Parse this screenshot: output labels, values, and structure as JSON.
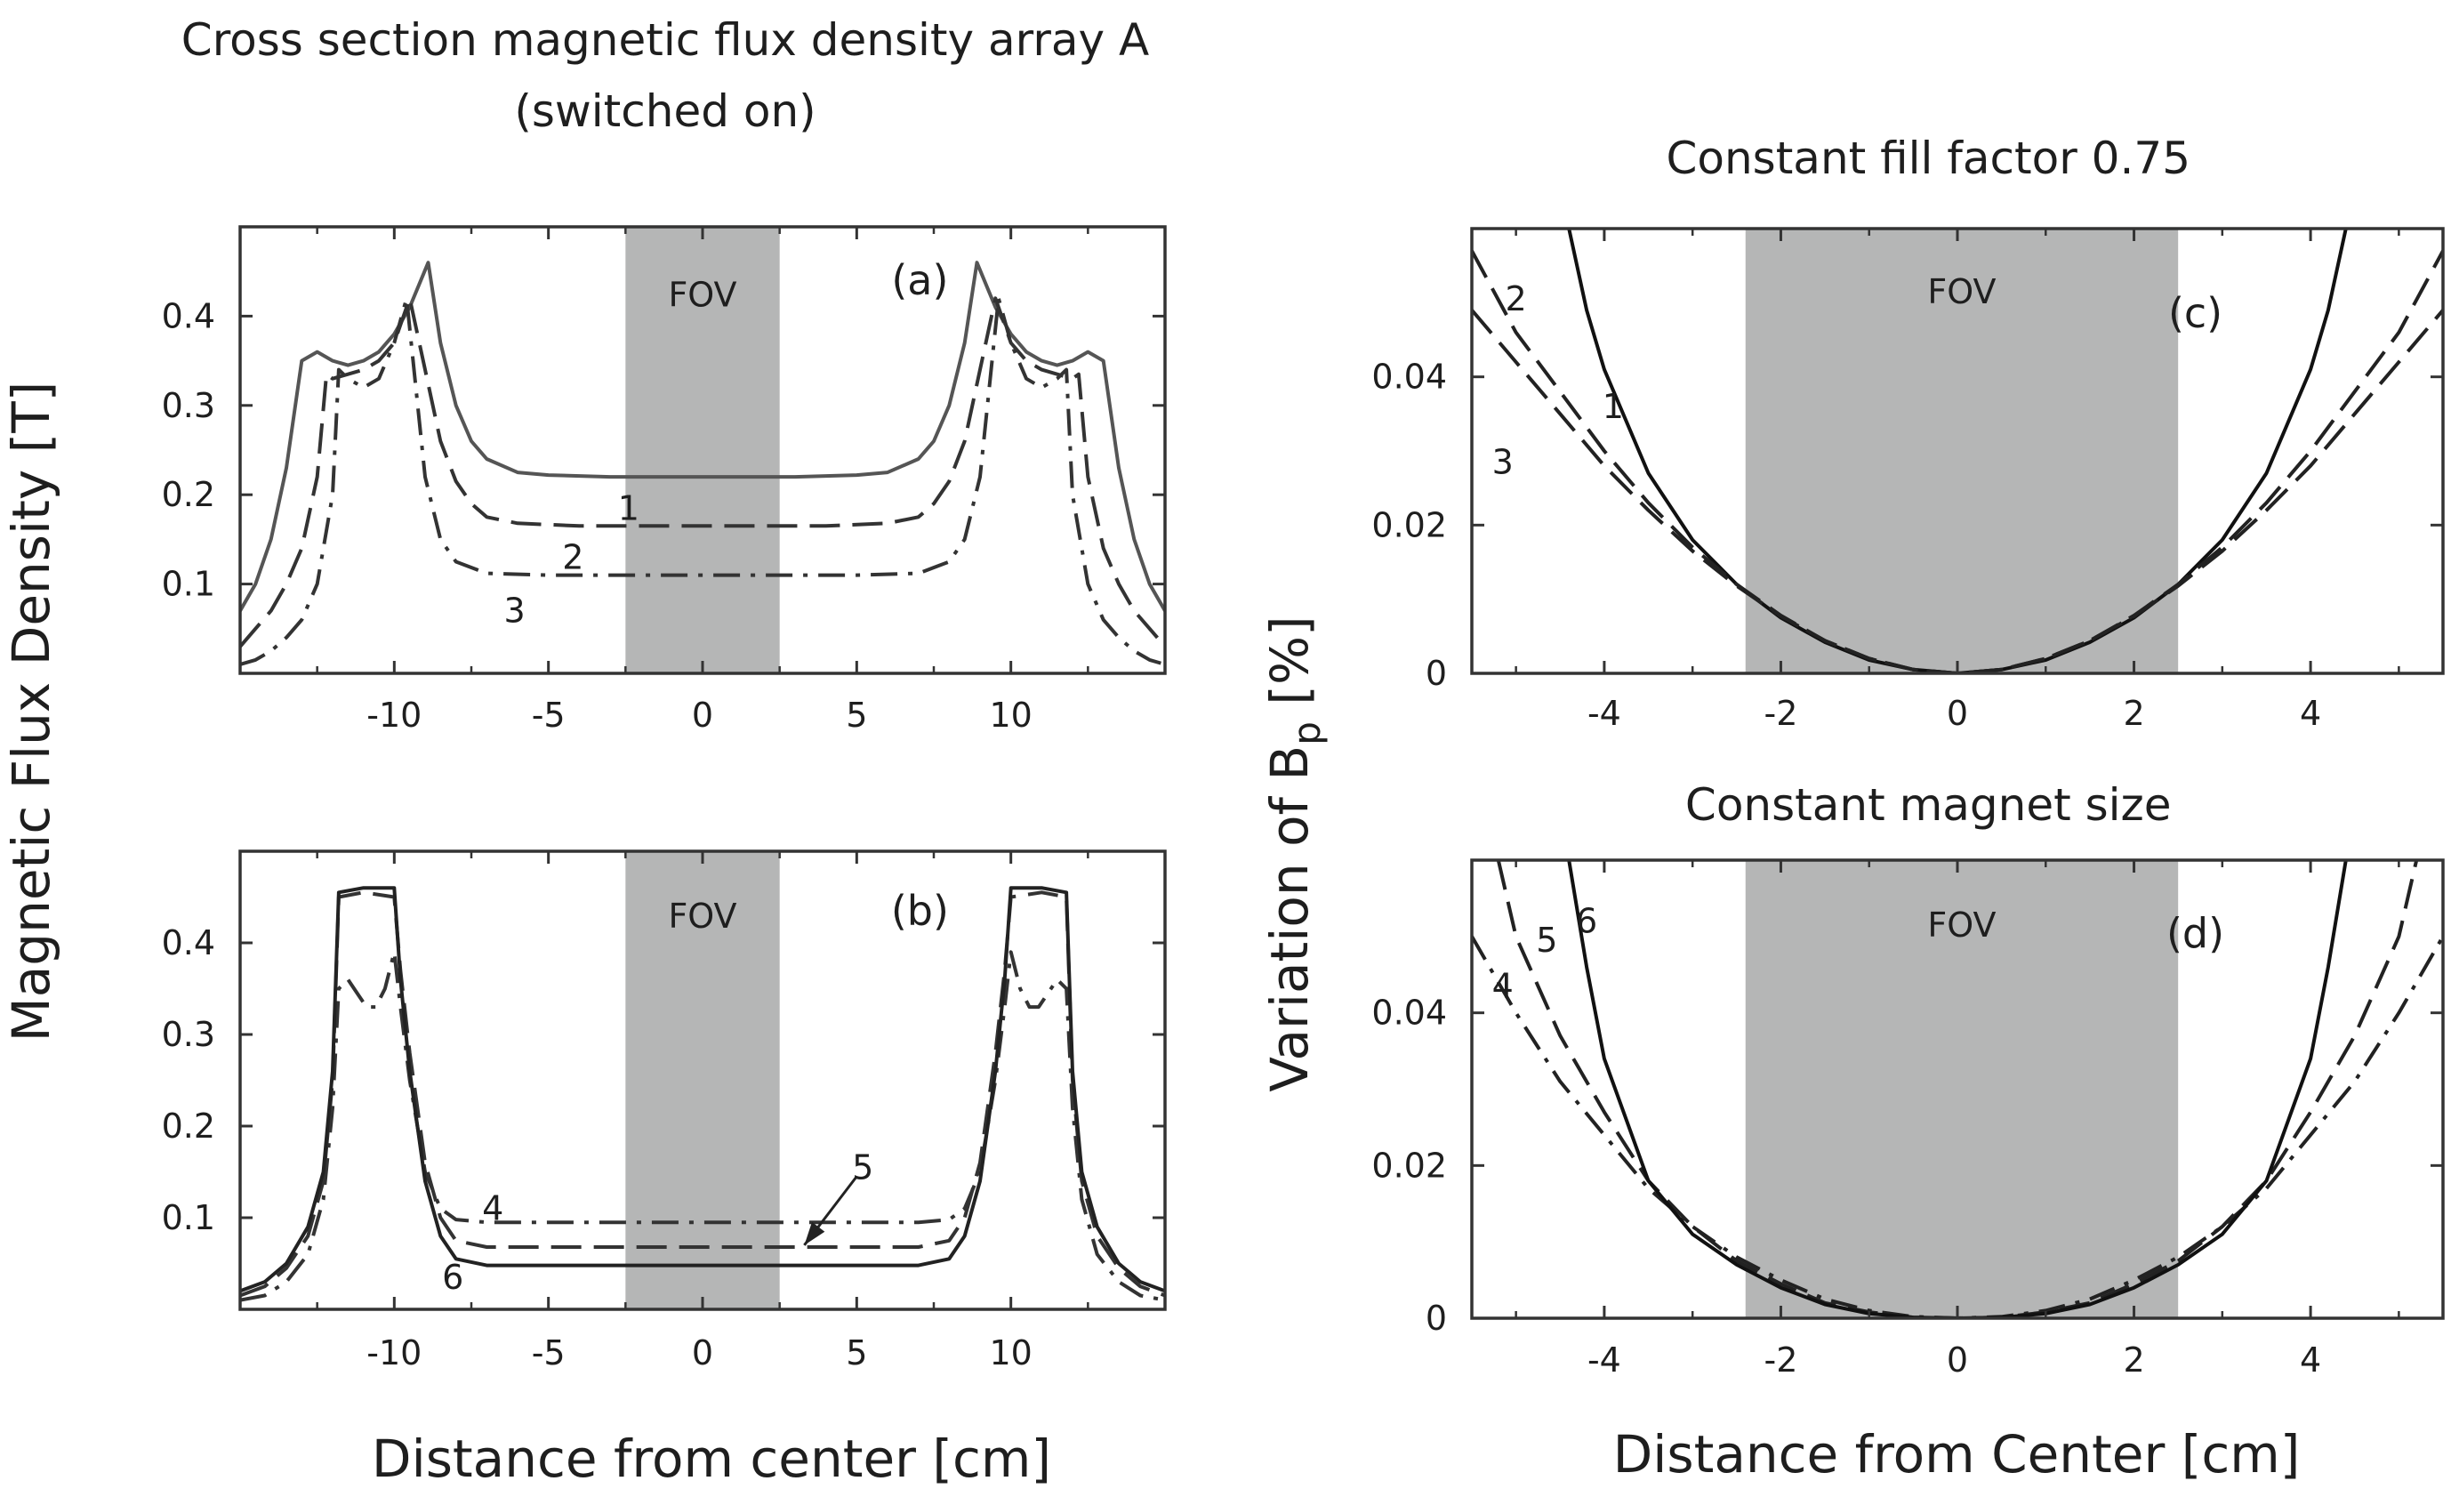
{
  "figure": {
    "left_title_line1": "Cross section magnetic flux density array A",
    "left_title_line2": "(switched on)",
    "left_ylabel": "Magnetic Flux Density [T]",
    "left_xlabel": "Distance from center [cm]",
    "right_ylabel_main": "Variation of B",
    "right_ylabel_sub": "p",
    "right_ylabel_unit": " [%]",
    "right_xlabel": "Distance from Center [cm]"
  },
  "chart_data": [
    {
      "id": "a",
      "type": "line",
      "title": "",
      "panel_label": "(a)",
      "band_label": "FOV",
      "fov": [
        -2.5,
        2.5
      ],
      "xlim": [
        -15,
        15
      ],
      "ylim": [
        0,
        0.5
      ],
      "xticks": [
        -10,
        -5,
        0,
        5,
        10
      ],
      "yticks": [
        0.1,
        0.2,
        0.3,
        0.4
      ],
      "xticklabels": [
        "-10",
        "-5",
        "0",
        "5",
        "10"
      ],
      "yticklabels": [
        "0.1",
        "0.2",
        "0.3",
        "0.4"
      ],
      "grid": false,
      "series": [
        {
          "name": "1",
          "style": "solid",
          "color": "#555555",
          "x": [
            0,
            3,
            5,
            6,
            7,
            7.5,
            8,
            8.5,
            8.9,
            9.5,
            10,
            10.5,
            11,
            11.5,
            12,
            12.5,
            13,
            13.5,
            14,
            14.5,
            15
          ],
          "y": [
            0.22,
            0.22,
            0.222,
            0.225,
            0.24,
            0.26,
            0.3,
            0.37,
            0.46,
            0.41,
            0.38,
            0.36,
            0.35,
            0.345,
            0.35,
            0.36,
            0.35,
            0.23,
            0.15,
            0.1,
            0.07
          ]
        },
        {
          "name": "2",
          "style": "dash",
          "color": "#333333",
          "x": [
            0,
            4,
            6,
            7,
            7.5,
            8,
            8.5,
            9,
            9.5,
            10,
            10.5,
            11,
            11.5,
            12,
            12.2,
            12.5,
            13,
            13.5,
            14,
            14.5,
            15
          ],
          "y": [
            0.165,
            0.165,
            0.168,
            0.175,
            0.19,
            0.215,
            0.26,
            0.34,
            0.42,
            0.37,
            0.35,
            0.34,
            0.335,
            0.33,
            0.335,
            0.22,
            0.14,
            0.1,
            0.07,
            0.05,
            0.03
          ]
        },
        {
          "name": "3",
          "style": "dashdot",
          "color": "#333333",
          "x": [
            0,
            5,
            7,
            8,
            8.5,
            9,
            9.3,
            9.6,
            10,
            10.5,
            11,
            11.5,
            11.8,
            12,
            12.5,
            13,
            13.5,
            14,
            14.5,
            15
          ],
          "y": [
            0.11,
            0.11,
            0.112,
            0.125,
            0.15,
            0.22,
            0.32,
            0.42,
            0.37,
            0.33,
            0.32,
            0.33,
            0.34,
            0.2,
            0.1,
            0.06,
            0.04,
            0.025,
            0.015,
            0.01
          ]
        }
      ],
      "curve_labels": [
        {
          "text": "1",
          "x": -2.4,
          "y": 0.185
        },
        {
          "text": "2",
          "x": -4.2,
          "y": 0.13
        },
        {
          "text": "3",
          "x": -6.1,
          "y": 0.07
        }
      ]
    },
    {
      "id": "b",
      "type": "line",
      "title": "",
      "panel_label": "(b)",
      "band_label": "FOV",
      "fov": [
        -2.5,
        2.5
      ],
      "xlim": [
        -15,
        15
      ],
      "ylim": [
        0,
        0.5
      ],
      "xticks": [
        -10,
        -5,
        0,
        5,
        10
      ],
      "yticks": [
        0.1,
        0.2,
        0.3,
        0.4
      ],
      "xticklabels": [
        "-10",
        "-5",
        "0",
        "5",
        "10"
      ],
      "yticklabels": [
        "0.1",
        "0.2",
        "0.3",
        "0.4"
      ],
      "grid": false,
      "series": [
        {
          "name": "4",
          "style": "dashdot",
          "color": "#333333",
          "x": [
            0,
            7,
            8,
            8.5,
            9,
            9.5,
            9.8,
            10,
            10.3,
            10.6,
            10.9,
            11.2,
            11.5,
            11.8,
            12,
            12.3,
            12.8,
            13.5,
            14.2,
            15
          ],
          "y": [
            0.095,
            0.095,
            0.098,
            0.11,
            0.15,
            0.25,
            0.33,
            0.39,
            0.35,
            0.33,
            0.33,
            0.345,
            0.36,
            0.35,
            0.22,
            0.12,
            0.06,
            0.03,
            0.015,
            0.01
          ]
        },
        {
          "name": "5",
          "style": "dash",
          "color": "#333333",
          "x": [
            0,
            7,
            8,
            8.5,
            9,
            9.5,
            9.8,
            10,
            11,
            11.8,
            12,
            12.3,
            12.8,
            13.5,
            14.2,
            15
          ],
          "y": [
            0.068,
            0.068,
            0.075,
            0.1,
            0.16,
            0.28,
            0.37,
            0.45,
            0.455,
            0.45,
            0.25,
            0.14,
            0.08,
            0.045,
            0.025,
            0.015
          ]
        },
        {
          "name": "6",
          "style": "solid",
          "color": "#222222",
          "x": [
            0,
            7,
            8,
            8.5,
            9,
            9.5,
            9.8,
            10,
            11,
            11.8,
            12,
            12.3,
            12.8,
            13.5,
            14.2,
            15
          ],
          "y": [
            0.048,
            0.048,
            0.055,
            0.08,
            0.14,
            0.26,
            0.36,
            0.46,
            0.46,
            0.455,
            0.26,
            0.15,
            0.09,
            0.05,
            0.03,
            0.02
          ]
        }
      ],
      "curve_labels": [
        {
          "text": "4",
          "x": -6.8,
          "y": 0.11
        },
        {
          "text": "5",
          "x": 5.2,
          "y": 0.155
        },
        {
          "text": "6",
          "x": -8.1,
          "y": 0.035
        }
      ],
      "arrow": {
        "from": [
          5.0,
          0.145
        ],
        "to": [
          3.3,
          0.07
        ]
      }
    },
    {
      "id": "c",
      "type": "line",
      "title": "Constant fill factor 0.75",
      "panel_label": "(c)",
      "band_label": "FOV",
      "fov": [
        -2.4,
        2.5
      ],
      "xlim": [
        -5.5,
        5.5
      ],
      "ylim": [
        0,
        0.06
      ],
      "xticks": [
        -4,
        -2,
        0,
        2,
        4
      ],
      "yticks": [
        0,
        0.02,
        0.04
      ],
      "xticklabels": [
        "-4",
        "-2",
        "0",
        "2",
        "4"
      ],
      "yticklabels": [
        "0",
        "0.02",
        "0.04"
      ],
      "grid": false,
      "series": [
        {
          "name": "1",
          "style": "solid",
          "color": "#111111",
          "x": [
            -4.4,
            -4.2,
            -4,
            -3.5,
            -3,
            -2.5,
            -2,
            -1.5,
            -1,
            -0.5,
            0,
            0.5,
            1,
            1.5,
            2,
            2.5,
            3,
            3.5,
            4,
            4.2,
            4.4
          ],
          "y": [
            0.06,
            0.049,
            0.041,
            0.027,
            0.018,
            0.012,
            0.0075,
            0.0042,
            0.0018,
            0.0005,
            0,
            0.0005,
            0.0018,
            0.0042,
            0.0075,
            0.012,
            0.018,
            0.027,
            0.041,
            0.049,
            0.06
          ]
        },
        {
          "name": "2",
          "style": "dash",
          "color": "#222222",
          "x": [
            -5.5,
            -5,
            -4.5,
            -4,
            -3.5,
            -3,
            -2.5,
            -2,
            -1.5,
            -1,
            -0.5,
            0,
            0.5,
            1,
            1.5,
            2,
            2.5,
            3,
            3.5,
            4,
            4.5,
            5,
            5.5
          ],
          "y": [
            0.057,
            0.046,
            0.038,
            0.03,
            0.023,
            0.017,
            0.012,
            0.0078,
            0.0044,
            0.002,
            0.0005,
            0,
            0.0005,
            0.002,
            0.0044,
            0.0078,
            0.012,
            0.017,
            0.023,
            0.03,
            0.038,
            0.046,
            0.057
          ]
        },
        {
          "name": "3",
          "style": "dash",
          "color": "#222222",
          "x": [
            -5.5,
            -5,
            -4.5,
            -4,
            -3.5,
            -3,
            -2.5,
            -2,
            -1.5,
            -1,
            -0.5,
            0,
            0.5,
            1,
            1.5,
            2,
            2.5,
            3,
            3.5,
            4,
            4.5,
            5,
            5.5
          ],
          "y": [
            0.049,
            0.042,
            0.035,
            0.028,
            0.022,
            0.0165,
            0.0118,
            0.0077,
            0.0044,
            0.002,
            0.0005,
            0,
            0.0005,
            0.002,
            0.0044,
            0.0077,
            0.0118,
            0.0165,
            0.022,
            0.028,
            0.035,
            0.042,
            0.049
          ]
        }
      ],
      "curve_labels": [
        {
          "text": "2",
          "x": -5.0,
          "y": 0.0505
        },
        {
          "text": "1",
          "x": -3.9,
          "y": 0.036
        },
        {
          "text": "3",
          "x": -5.15,
          "y": 0.0285
        }
      ]
    },
    {
      "id": "d",
      "type": "line",
      "title": "Constant magnet size",
      "panel_label": "(d)",
      "band_label": "FOV",
      "fov": [
        -2.4,
        2.5
      ],
      "xlim": [
        -5.5,
        5.5
      ],
      "ylim": [
        0,
        0.06
      ],
      "xticks": [
        -4,
        -2,
        0,
        2,
        4
      ],
      "yticks": [
        0,
        0.02,
        0.04
      ],
      "xticklabels": [
        "-4",
        "-2",
        "0",
        "2",
        "4"
      ],
      "yticklabels": [
        "0",
        "0.02",
        "0.04"
      ],
      "grid": false,
      "series": [
        {
          "name": "4",
          "style": "dashdot",
          "color": "#222222",
          "x": [
            -5.5,
            -5,
            -4.5,
            -4,
            -3.5,
            -3,
            -2.5,
            -2,
            -1.5,
            -1,
            -0.5,
            0,
            0.5,
            1,
            1.5,
            2,
            2.5,
            3,
            3.5,
            4,
            4.5,
            5,
            5.5
          ],
          "y": [
            0.05,
            0.04,
            0.031,
            0.024,
            0.017,
            0.012,
            0.008,
            0.005,
            0.0025,
            0.001,
            0.0002,
            0,
            0.0002,
            0.001,
            0.0025,
            0.005,
            0.008,
            0.012,
            0.017,
            0.024,
            0.031,
            0.04,
            0.05
          ]
        },
        {
          "name": "5",
          "style": "dash",
          "color": "#222222",
          "x": [
            -5.2,
            -5,
            -4.5,
            -4,
            -3.5,
            -3,
            -2.5,
            -2,
            -1.5,
            -1,
            -0.5,
            0,
            0.5,
            1,
            1.5,
            2,
            2.5,
            3,
            3.5,
            4,
            4.5,
            5,
            5.2
          ],
          "y": [
            0.06,
            0.05,
            0.037,
            0.027,
            0.018,
            0.012,
            0.0075,
            0.0045,
            0.002,
            0.0008,
            0.0001,
            0,
            0.0001,
            0.0008,
            0.002,
            0.0045,
            0.0075,
            0.012,
            0.018,
            0.027,
            0.037,
            0.05,
            0.06
          ]
        },
        {
          "name": "6",
          "style": "solid",
          "color": "#111111",
          "x": [
            -4.4,
            -4.2,
            -4,
            -3.5,
            -3,
            -2.5,
            -2,
            -1.5,
            -1,
            -0.5,
            0,
            0.5,
            1,
            1.5,
            2,
            2.5,
            3,
            3.5,
            4,
            4.2,
            4.4
          ],
          "y": [
            0.06,
            0.046,
            0.034,
            0.018,
            0.011,
            0.007,
            0.004,
            0.0018,
            0.0006,
            0.0001,
            0,
            0.0001,
            0.0006,
            0.0018,
            0.004,
            0.007,
            0.011,
            0.018,
            0.034,
            0.046,
            0.06
          ]
        }
      ],
      "curve_labels": [
        {
          "text": "4",
          "x": -5.15,
          "y": 0.0435
        },
        {
          "text": "5",
          "x": -4.65,
          "y": 0.0495
        },
        {
          "text": "6",
          "x": -4.2,
          "y": 0.052
        }
      ]
    }
  ]
}
